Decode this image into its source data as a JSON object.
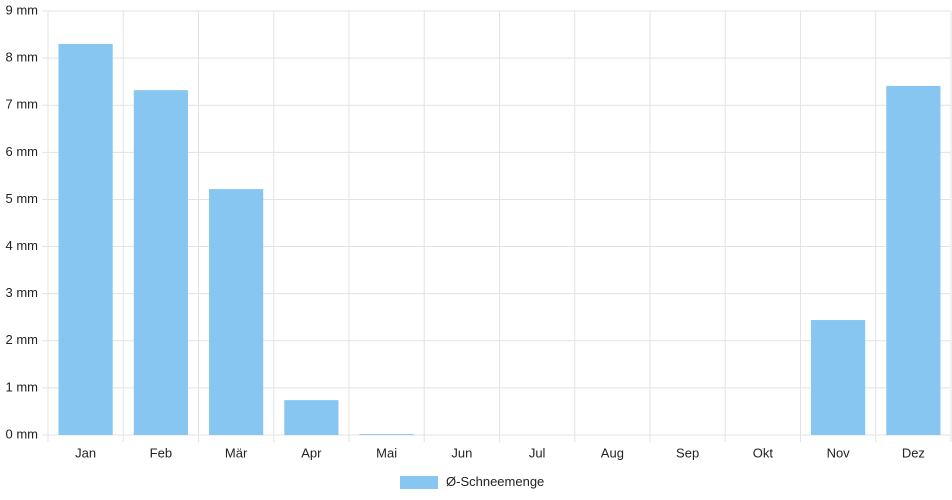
{
  "chart_data": {
    "type": "bar",
    "categories": [
      "Jan",
      "Feb",
      "Mär",
      "Apr",
      "Mai",
      "Jun",
      "Jul",
      "Aug",
      "Sep",
      "Okt",
      "Nov",
      "Dez"
    ],
    "series": [
      {
        "name": "Ø-Schneemenge",
        "color": "#88c6f2",
        "values": [
          8.3,
          7.32,
          5.22,
          0.74,
          0.02,
          0,
          0,
          0,
          0,
          0,
          2.44,
          7.41
        ]
      }
    ],
    "ylim": [
      0,
      9
    ],
    "yticks": [
      {
        "value": 0,
        "label": "0 mm"
      },
      {
        "value": 1,
        "label": "1 mm"
      },
      {
        "value": 2,
        "label": "2 mm"
      },
      {
        "value": 3,
        "label": "3 mm"
      },
      {
        "value": 4,
        "label": "4 mm"
      },
      {
        "value": 5,
        "label": "5 mm"
      },
      {
        "value": 6,
        "label": "6 mm"
      },
      {
        "value": 7,
        "label": "7 mm"
      },
      {
        "value": 8,
        "label": "8 mm"
      },
      {
        "value": 9,
        "label": "9 mm"
      }
    ],
    "grid": true,
    "legend": "bottom"
  }
}
